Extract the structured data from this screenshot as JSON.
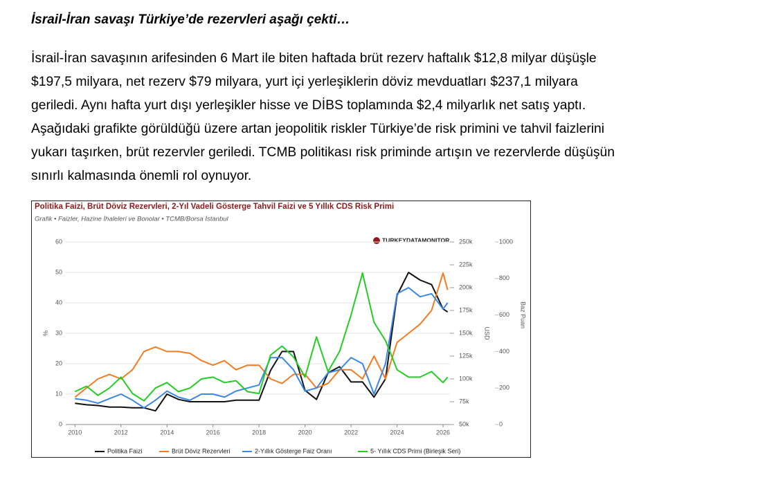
{
  "header": {
    "title": "İsrail-İran savaşı Türkiye’de rezervleri aşağı çekti…"
  },
  "paragraph": {
    "lines": [
      "İsrail-İran savaşının arifesinden 6 Mart ile biten haftada brüt rezerv haftalık $12,8 milyar düşüşle",
      "$197,5 milyara, net rezerv $79 milyara, yurt içi yerleşiklerin döviz mevduatları $237,1 milyara",
      "geriledi. Aynı hafta yurt dışı yerleşikler hisse ve DİBS toplamında $2,4 milyarlık net satış yaptı.",
      "Aşağıdaki grafikte görüldüğü üzere artan jeopolitik riskler Türkiye’de risk primini ve tahvil faizlerini",
      "yukarı taşırken, brüt rezervler geriledi. TCMB politikası risk priminde artışın ve rezervlerde düşüşün",
      "sınırlı kalmasında önemli rol oynuyor."
    ]
  },
  "chart_data": {
    "type": "line",
    "title": "Politika Faizi, Brüt Döviz Rezervleri, 2-Yıl Vadeli Gösterge Tahvil Faizi ve 5 Yıllık CDS Risk Primi",
    "subtitle": "Grafik • Faizler, Hazine İhaleleri ve Bonolar • TCMB/Borsa İstanbul",
    "watermark": "TURKEYDATAMONITOR",
    "x": [
      2010,
      2010.5,
      2011,
      2011.5,
      2012,
      2012.5,
      2013,
      2013.5,
      2014,
      2014.5,
      2015,
      2015.5,
      2016,
      2016.5,
      2017,
      2017.5,
      2018,
      2018.5,
      2019,
      2019.5,
      2020,
      2020.5,
      2021,
      2021.5,
      2022,
      2022.5,
      2023,
      2023.5,
      2024,
      2024.5,
      2025,
      2025.5,
      2026,
      2026.2
    ],
    "xlim": [
      2009.6,
      2026.3
    ],
    "xticks": [
      2010,
      2012,
      2014,
      2016,
      2018,
      2020,
      2022,
      2024,
      2026
    ],
    "y_label": "%",
    "ylim": [
      0,
      60
    ],
    "yticks": [
      0,
      10,
      20,
      30,
      40,
      50,
      60
    ],
    "y2_label": "USD",
    "y2lim": [
      50000,
      250000
    ],
    "y2ticks": [
      {
        "value": 50000,
        "label": "50k"
      },
      {
        "value": 75000,
        "label": "75k"
      },
      {
        "value": 100000,
        "label": "100k"
      },
      {
        "value": 125000,
        "label": "125k"
      },
      {
        "value": 150000,
        "label": "150k"
      },
      {
        "value": 175000,
        "label": "175k"
      },
      {
        "value": 200000,
        "label": "200k"
      },
      {
        "value": 225000,
        "label": "225k"
      },
      {
        "value": 250000,
        "label": "250k"
      }
    ],
    "y3_label": "Baz Puan",
    "y3lim": [
      0,
      1000
    ],
    "y3ticks": [
      0,
      200,
      400,
      600,
      800,
      1000
    ],
    "grid": true,
    "series": [
      {
        "name": "Politika Faizi",
        "color": "#111111",
        "axis": "y",
        "values": [
          7,
          6.5,
          6.25,
          5.75,
          5.75,
          5.5,
          5.5,
          4.5,
          10,
          8.25,
          7.5,
          7.5,
          7.5,
          7.5,
          8,
          8,
          8,
          17.75,
          24,
          24,
          11.25,
          8.25,
          17,
          19,
          14,
          14,
          9,
          15,
          42.5,
          50,
          47.5,
          46,
          38,
          37
        ]
      },
      {
        "name": "Brüt Döviz Rezervleri",
        "color": "#f47b20",
        "axis": "y2",
        "values": [
          80000,
          90000,
          100000,
          105000,
          100000,
          110000,
          130000,
          135000,
          130000,
          130000,
          128000,
          120000,
          115000,
          120000,
          110000,
          115000,
          115000,
          100000,
          95000,
          105000,
          105000,
          90000,
          95000,
          110000,
          110000,
          100000,
          125000,
          100000,
          140000,
          150000,
          160000,
          175000,
          216000,
          197500
        ]
      },
      {
        "name": "2-Yıllık Gösterge Faiz Oranı",
        "color": "#3a86e8",
        "axis": "y",
        "values": [
          8.5,
          8,
          7,
          8.5,
          10,
          8,
          5.5,
          8,
          11,
          9,
          8,
          10,
          10,
          9,
          11,
          12,
          13,
          22,
          22,
          18,
          11,
          12,
          17,
          18,
          22,
          20,
          10,
          20,
          43,
          45,
          42,
          43,
          38,
          40
        ]
      },
      {
        "name": "5- Yıllık CDS Primi (Birleşik Seri)",
        "color": "#22cc22",
        "axis": "y3",
        "values": [
          180,
          210,
          160,
          200,
          260,
          170,
          130,
          200,
          230,
          180,
          200,
          250,
          260,
          230,
          240,
          180,
          170,
          380,
          430,
          370,
          260,
          480,
          290,
          400,
          600,
          830,
          560,
          460,
          300,
          260,
          260,
          290,
          230,
          260
        ]
      }
    ]
  }
}
